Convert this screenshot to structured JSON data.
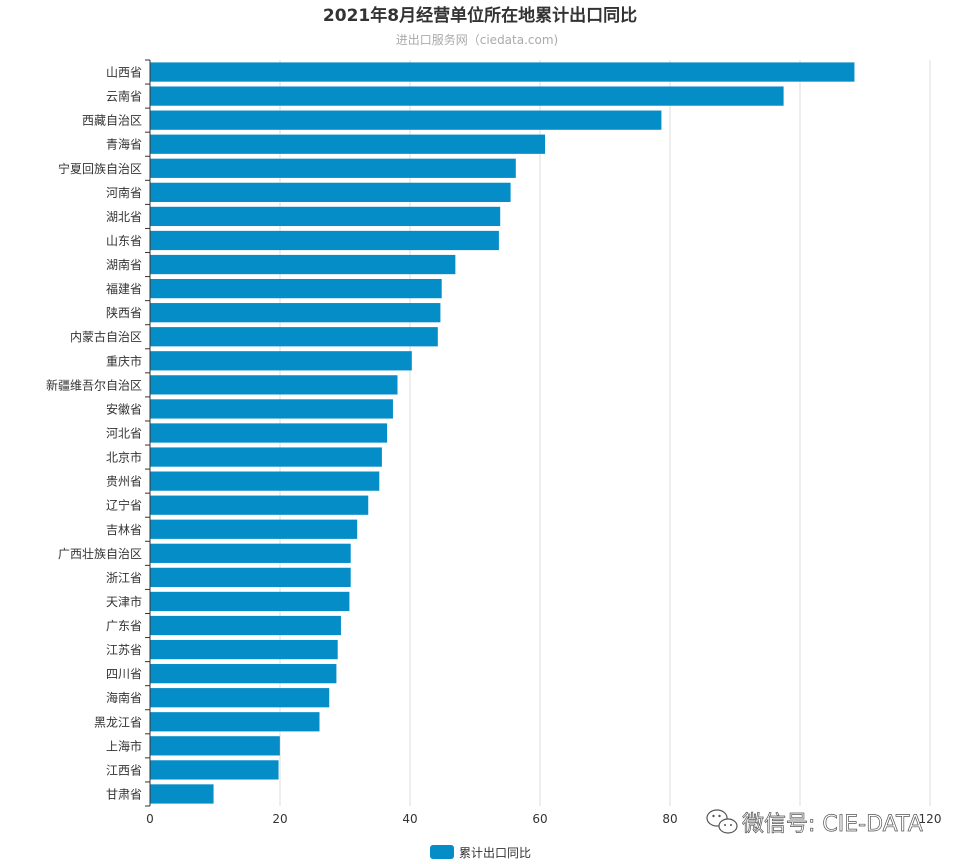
{
  "chart_data": {
    "type": "bar",
    "orientation": "horizontal",
    "title": "2021年8月经营单位所在地累计出口同比",
    "subtitle": "进出口服务网（ciedata.com)",
    "categories": [
      "山西省",
      "云南省",
      "西藏自治区",
      "青海省",
      "宁夏回族自治区",
      "河南省",
      "湖北省",
      "山东省",
      "湖南省",
      "福建省",
      "陕西省",
      "内蒙古自治区",
      "重庆市",
      "新疆维吾尔自治区",
      "安徽省",
      "河北省",
      "北京市",
      "贵州省",
      "辽宁省",
      "吉林省",
      "广西壮族自治区",
      "浙江省",
      "天津市",
      "广东省",
      "江苏省",
      "四川省",
      "海南省",
      "黑龙江省",
      "上海市",
      "江西省",
      "甘肃省"
    ],
    "series": [
      {
        "name": "累计出口同比",
        "color": "#058dc7",
        "values": [
          108.3,
          97.4,
          78.6,
          60.7,
          56.2,
          55.4,
          53.8,
          53.6,
          46.9,
          44.8,
          44.6,
          44.2,
          40.2,
          38.0,
          37.3,
          36.4,
          35.6,
          35.2,
          33.5,
          31.8,
          30.8,
          30.8,
          30.6,
          29.3,
          28.8,
          28.6,
          27.5,
          26.0,
          19.9,
          19.7,
          9.7
        ]
      }
    ],
    "xlim": [
      0,
      120
    ],
    "x_ticks": [
      "0",
      "20",
      "40",
      "60",
      "80",
      "120"
    ],
    "grid": true,
    "legend_position": "bottom-center"
  },
  "watermark": {
    "icon": "wechat-icon",
    "text": "微信号: CIE-DATA"
  }
}
